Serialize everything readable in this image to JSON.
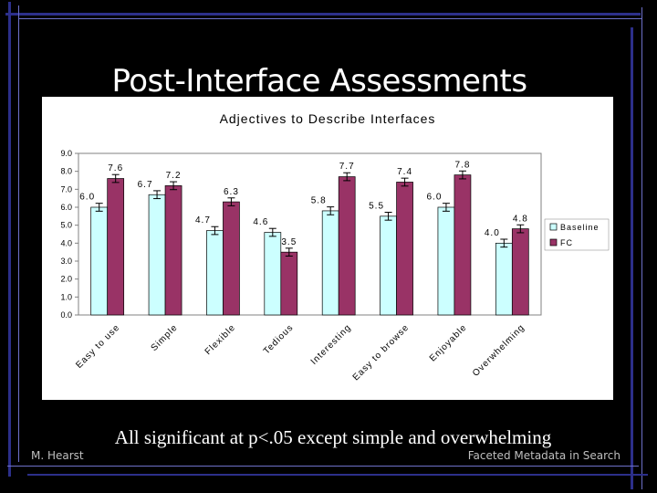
{
  "slide": {
    "title": "Post-Interface Assessments",
    "caption": "All significant at p<.05 except simple and overwhelming",
    "author": "M. Hearst",
    "footer": "Faceted Metadata in Search"
  },
  "colors": {
    "background": "#000000",
    "baseline": "#ccffff",
    "fc": "#993366",
    "accent_blue": "#2c2f8a"
  },
  "chart_data": {
    "type": "bar",
    "title": "Adjectives to Describe Interfaces",
    "xlabel": "",
    "ylabel": "",
    "ylim": [
      0,
      9
    ],
    "yticks": [
      "0.0",
      "1.0",
      "2.0",
      "3.0",
      "4.0",
      "5.0",
      "6.0",
      "7.0",
      "8.0",
      "9.0"
    ],
    "grid": false,
    "legend_position": "right",
    "error_bars": true,
    "categories": [
      "Easy to use",
      "Simple",
      "Flexible",
      "Tedious",
      "Interesting",
      "Easy to browse",
      "Enjoyable",
      "Overwhelming"
    ],
    "series": [
      {
        "name": "Baseline",
        "values": [
          6.0,
          6.7,
          4.7,
          4.6,
          5.8,
          5.5,
          6.0,
          4.0
        ],
        "labels": [
          "6.0",
          "6.7",
          "4.7",
          "4.6",
          "5.8",
          "5.5",
          "6.0",
          "4.0"
        ]
      },
      {
        "name": "FC",
        "values": [
          7.6,
          7.2,
          6.3,
          3.5,
          7.7,
          7.4,
          7.8,
          4.8
        ],
        "labels": [
          "7.6",
          "7.2",
          "6.3",
          "3.5",
          "7.7",
          "7.4",
          "7.8",
          "4.8"
        ]
      }
    ]
  }
}
